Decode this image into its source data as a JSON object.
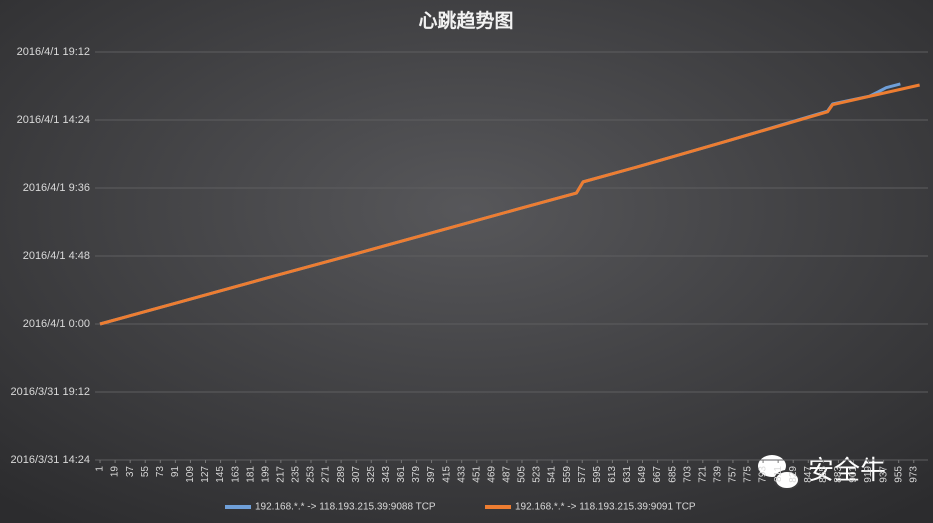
{
  "chart_data": {
    "type": "line",
    "title": "心跳趋势图",
    "watermark": "安全牛",
    "xlim": [
      -5,
      990
    ],
    "xticks": [
      1,
      19,
      37,
      55,
      73,
      91,
      109,
      127,
      145,
      163,
      181,
      199,
      217,
      235,
      253,
      271,
      289,
      307,
      325,
      343,
      361,
      379,
      397,
      415,
      433,
      451,
      469,
      487,
      505,
      523,
      541,
      559,
      577,
      595,
      613,
      631,
      649,
      667,
      685,
      703,
      721,
      739,
      757,
      775,
      793,
      811,
      829,
      847,
      865,
      883,
      901,
      919,
      937,
      955,
      973
    ],
    "ylim": [
      42460.6,
      42461.8
    ],
    "yticks": [
      {
        "value": 42460.6,
        "label": "2016/3/31 14:24"
      },
      {
        "value": 42460.8,
        "label": "2016/3/31 19:12"
      },
      {
        "value": 42461.0,
        "label": "2016/4/1 0:00"
      },
      {
        "value": 42461.2,
        "label": "2016/4/1 4:48"
      },
      {
        "value": 42461.4,
        "label": "2016/4/1 9:36"
      },
      {
        "value": 42461.6,
        "label": "2016/4/1 14:24"
      },
      {
        "value": 42461.8,
        "label": "2016/4/1 19:12"
      }
    ],
    "grid": true,
    "legend": "bottom",
    "series": [
      {
        "name": "192.168.*.* -> 118.193.215.39:9088 TCP",
        "color": "#6f9fd8",
        "x": [
          1,
          100,
          200,
          300,
          400,
          500,
          570,
          578,
          650,
          750,
          870,
          876,
          920,
          930,
          940,
          957
        ],
        "values": [
          42461.0,
          42461.067,
          42461.135,
          42461.202,
          42461.27,
          42461.338,
          42461.385,
          42461.418,
          42461.467,
          42461.538,
          42461.626,
          42461.647,
          42461.67,
          42461.682,
          42461.695,
          42461.706
        ]
      },
      {
        "name": "192.168.*.* -> 118.193.215.39:9091 TCP",
        "color": "#ed7d31",
        "x": [
          1,
          100,
          200,
          300,
          400,
          500,
          570,
          578,
          650,
          750,
          870,
          876,
          980
        ],
        "values": [
          42461.0,
          42461.067,
          42461.135,
          42461.202,
          42461.27,
          42461.338,
          42461.385,
          42461.418,
          42461.467,
          42461.538,
          42461.624,
          42461.645,
          42461.703
        ]
      }
    ]
  }
}
